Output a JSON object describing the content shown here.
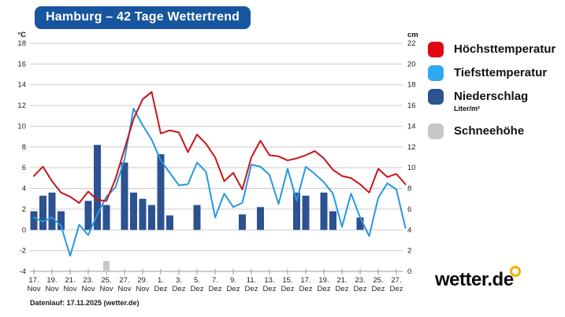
{
  "title": "Hamburg – 42 Tage Wettertrend",
  "colors": {
    "banner_bg": "#17569e",
    "max_temp": "#c8151b",
    "min_temp": "#2798e0",
    "precipitation": "#2c528f",
    "snow": "#c5c7c9",
    "legend_max": "#e30613",
    "legend_min": "#2fa9f2",
    "grid": "#cbcbcb",
    "axis": "#9a9a9a",
    "logo_ring": "#f0b300"
  },
  "legend": {
    "items": [
      {
        "label": "Höchsttemperatur",
        "sub": ""
      },
      {
        "label": "Tiefsttemperatur",
        "sub": ""
      },
      {
        "label": "Niederschlag",
        "sub": "Liter/m²"
      },
      {
        "label": "Schneehöhe",
        "sub": ""
      }
    ]
  },
  "footer": {
    "datenlauf": "Datenlauf: 17.11.2025 (wetter.de)",
    "logo_text": "wetter.de"
  },
  "axes": {
    "left_unit": "°C",
    "right_unit": "cm",
    "left_ticks": [
      18,
      16,
      14,
      12,
      10,
      8,
      6,
      4,
      2,
      0,
      -2,
      -4
    ],
    "right_ticks": [
      22,
      20,
      18,
      16,
      14,
      12,
      10,
      8,
      6,
      4,
      2,
      0
    ]
  },
  "chart_data": {
    "type": "line+bar",
    "title": "Hamburg – 42 Tage Wettertrend",
    "ylim_left_celsius": [
      -4,
      18
    ],
    "ylim_right_cm": [
      0,
      22
    ],
    "grid": true,
    "legend_position": "right",
    "x_tick_labels": [
      {
        "d": "17.",
        "m": "Nov"
      },
      {
        "d": "19.",
        "m": "Nov"
      },
      {
        "d": "21.",
        "m": "Nov"
      },
      {
        "d": "23.",
        "m": "Nov"
      },
      {
        "d": "25.",
        "m": "Nov"
      },
      {
        "d": "27.",
        "m": "Nov"
      },
      {
        "d": "29.",
        "m": "Nov"
      },
      {
        "d": "1.",
        "m": "Dez"
      },
      {
        "d": "3.",
        "m": "Dez"
      },
      {
        "d": "5.",
        "m": "Dez"
      },
      {
        "d": "7.",
        "m": "Dez"
      },
      {
        "d": "9.",
        "m": "Dez"
      },
      {
        "d": "11.",
        "m": "Dez"
      },
      {
        "d": "13.",
        "m": "Dez"
      },
      {
        "d": "15.",
        "m": "Dez"
      },
      {
        "d": "17.",
        "m": "Dez"
      },
      {
        "d": "19.",
        "m": "Dez"
      },
      {
        "d": "21.",
        "m": "Dez"
      },
      {
        "d": "23.",
        "m": "Dez"
      },
      {
        "d": "25.",
        "m": "Dez"
      },
      {
        "d": "27.",
        "m": "Dez"
      }
    ],
    "days": [
      "17. Nov",
      "18. Nov",
      "19. Nov",
      "20. Nov",
      "21. Nov",
      "22. Nov",
      "23. Nov",
      "24. Nov",
      "25. Nov",
      "26. Nov",
      "27. Nov",
      "28. Nov",
      "29. Nov",
      "30. Nov",
      "1. Dez",
      "2. Dez",
      "3. Dez",
      "4. Dez",
      "5. Dez",
      "6. Dez",
      "7. Dez",
      "8. Dez",
      "9. Dez",
      "10. Dez",
      "11. Dez",
      "12. Dez",
      "13. Dez",
      "14. Dez",
      "15. Dez",
      "16. Dez",
      "17. Dez",
      "18. Dez",
      "19. Dez",
      "20. Dez",
      "21. Dez",
      "22. Dez",
      "23. Dez",
      "24. Dez",
      "25. Dez",
      "26. Dez",
      "27. Dez",
      "28. Dez"
    ],
    "series": [
      {
        "name": "Höchsttemperatur",
        "type": "line",
        "axis": "left",
        "unit": "°C",
        "values": [
          5.2,
          6.1,
          4.7,
          3.6,
          3.2,
          2.6,
          3.7,
          2.9,
          2.8,
          4.9,
          7.8,
          10.7,
          12.6,
          13.3,
          9.3,
          9.6,
          9.4,
          7.5,
          9.2,
          8.3,
          7.0,
          4.7,
          5.5,
          3.9,
          7.0,
          8.6,
          7.2,
          7.1,
          6.7,
          6.9,
          7.2,
          7.6,
          6.9,
          5.8,
          5.2,
          5.0,
          4.4,
          3.6,
          5.9,
          5.1,
          5.4,
          4.4
        ]
      },
      {
        "name": "Tiefsttemperatur",
        "type": "line",
        "axis": "left",
        "unit": "°C",
        "values": [
          1.2,
          0.8,
          1.2,
          0.4,
          -2.5,
          0.5,
          -0.5,
          1.5,
          3.2,
          4.1,
          6.8,
          11.7,
          10.1,
          8.7,
          6.7,
          5.5,
          4.3,
          4.4,
          6.5,
          5.6,
          1.2,
          3.5,
          2.2,
          2.6,
          6.3,
          6.1,
          5.3,
          2.5,
          5.9,
          2.8,
          6.1,
          5.4,
          4.6,
          3.5,
          0.3,
          3.5,
          1.2,
          -0.6,
          3.1,
          4.5,
          3.9,
          0.2
        ]
      },
      {
        "name": "Niederschlag",
        "type": "bar",
        "axis": "right",
        "unit": "Liter/m²",
        "values": [
          1.8,
          3.3,
          3.6,
          1.8,
          0,
          0,
          2.8,
          8.2,
          2.4,
          0,
          6.5,
          3.6,
          3.0,
          2.4,
          7.3,
          1.4,
          0,
          0,
          2.4,
          0,
          0,
          0,
          0,
          1.5,
          0,
          2.2,
          0,
          0,
          0,
          3.6,
          3.3,
          0,
          3.6,
          1.8,
          0,
          0,
          1.2,
          0,
          0,
          0,
          0,
          0
        ]
      },
      {
        "name": "Schneehöhe",
        "type": "bar",
        "axis": "right",
        "unit": "cm",
        "values": [
          0,
          0,
          0,
          0,
          0,
          0,
          0,
          0,
          1.0,
          0,
          0,
          0,
          0,
          0,
          0,
          0,
          0,
          0,
          0,
          0,
          0,
          0,
          0,
          0,
          0,
          0,
          0,
          0,
          0,
          0,
          0,
          0,
          0,
          0,
          0,
          0,
          0,
          0,
          0,
          0,
          0,
          0
        ]
      }
    ]
  }
}
